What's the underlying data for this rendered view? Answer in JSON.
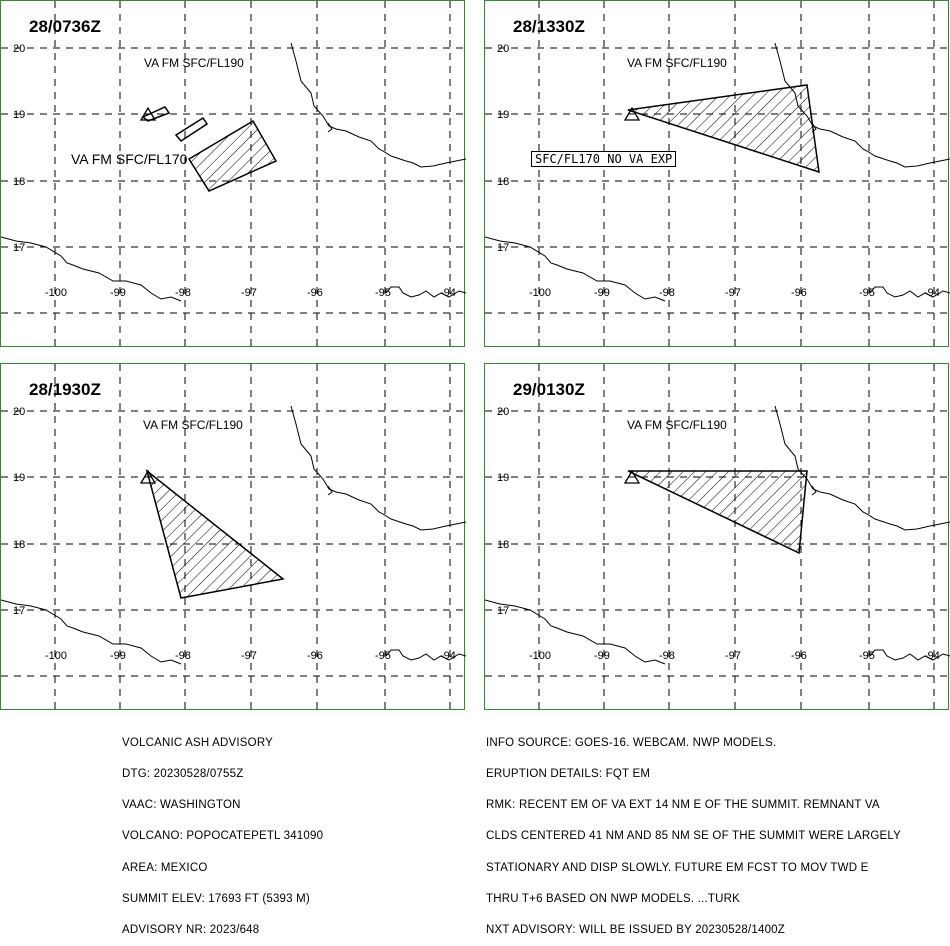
{
  "panels": [
    {
      "time": "28/0736Z",
      "top_label": "VA FM SFC/FL190",
      "extra_label": "VA FM SFC/FL170",
      "box_label": ""
    },
    {
      "time": "28/1330Z",
      "top_label": "VA FM SFC/FL190",
      "extra_label": "",
      "box_label": "SFC/FL170 NO VA EXP"
    },
    {
      "time": "28/1930Z",
      "top_label": "VA FM SFC/FL190",
      "extra_label": "",
      "box_label": ""
    },
    {
      "time": "29/0130Z",
      "top_label": "VA FM SFC/FL190",
      "extra_label": "",
      "box_label": ""
    }
  ],
  "axes": {
    "lat_labels": [
      "20",
      "19",
      "18",
      "17"
    ],
    "lon_labels": [
      "-100",
      "-99",
      "-98",
      "-97",
      "-96",
      "-95",
      "-94"
    ]
  },
  "advisory_left": [
    "VOLCANIC ASH ADVISORY",
    "DTG: 20230528/0755Z",
    "VAAC: WASHINGTON",
    "VOLCANO: POPOCATEPETL 341090",
    "AREA: MEXICO",
    "SUMMIT ELEV: 17693 FT (5393 M)",
    "ADVISORY NR: 2023/648"
  ],
  "advisory_right": [
    "INFO SOURCE: GOES-16. WEBCAM. NWP MODELS.",
    "ERUPTION DETAILS: FQT EM",
    "RMK: RECENT EM OF VA EXT 14 NM E OF THE SUMMIT. REMNANT VA",
    "CLDS CENTERED 41 NM AND 85 NM SE OF THE SUMMIT WERE LARGELY",
    "STATIONARY AND DISP SLOWLY. FUTURE EM FCST TO MOV TWD E",
    "THRU T+6 BASED ON NWP MODELS. ...TURK",
    "NXT ADVISORY: WILL BE ISSUED BY 20230528/1400Z"
  ],
  "colors": {
    "border": "#2e8b2e",
    "ink": "#000000"
  }
}
